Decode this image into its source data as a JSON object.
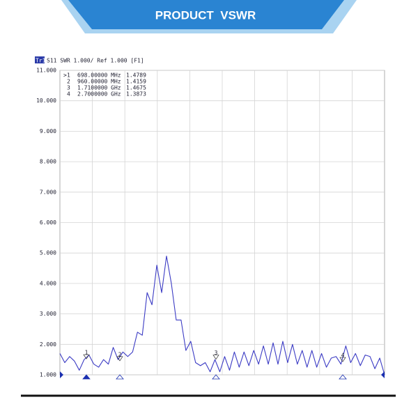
{
  "header": {
    "title": "PRODUCT  VSWR"
  },
  "chart_data": {
    "type": "line",
    "trace_tag": "Tr1",
    "subtitle": "S11 SWR 1.000/ Ref 1.000 [F1]",
    "color": "#3b3bc4",
    "grid": true,
    "ylim": [
      1,
      11
    ],
    "yticks": [
      {
        "value": 1,
        "label": "1.000"
      },
      {
        "value": 2,
        "label": "2.000"
      },
      {
        "value": 3,
        "label": "3.000"
      },
      {
        "value": 4,
        "label": "4.000"
      },
      {
        "value": 5,
        "label": "5.000"
      },
      {
        "value": 6,
        "label": "6.000"
      },
      {
        "value": 7,
        "label": "7.000"
      },
      {
        "value": 8,
        "label": "8.000"
      },
      {
        "value": 9,
        "label": "9.000"
      },
      {
        "value": 10,
        "label": "10.000"
      },
      {
        "value": 11,
        "label": "11.000"
      }
    ],
    "values": [
      1.7,
      1.4,
      1.6,
      1.45,
      1.15,
      1.5,
      1.65,
      1.35,
      1.25,
      1.5,
      1.35,
      1.9,
      1.5,
      1.75,
      1.6,
      1.75,
      2.4,
      2.3,
      3.7,
      3.3,
      4.6,
      3.7,
      4.9,
      4.0,
      2.8,
      2.8,
      1.8,
      2.1,
      1.4,
      1.3,
      1.4,
      1.1,
      1.5,
      1.1,
      1.6,
      1.15,
      1.75,
      1.25,
      1.75,
      1.3,
      1.8,
      1.35,
      1.95,
      1.35,
      2.05,
      1.35,
      2.1,
      1.4,
      2.0,
      1.35,
      1.8,
      1.25,
      1.8,
      1.25,
      1.7,
      1.25,
      1.55,
      1.6,
      1.35,
      1.95,
      1.4,
      1.7,
      1.3,
      1.65,
      1.6,
      1.2,
      1.55,
      1.0
    ],
    "active_mark": ">",
    "markers": [
      {
        "id": "1",
        "frequency": "698.00000 MHz",
        "swr": 1.4789
      },
      {
        "id": "2",
        "frequency": "960.00000 MHz",
        "swr": 1.4159
      },
      {
        "id": "3",
        "frequency": "1.7100000 GHz",
        "swr": 1.4675
      },
      {
        "id": "4",
        "frequency": "2.7000000 GHz",
        "swr": 1.3873
      }
    ]
  }
}
